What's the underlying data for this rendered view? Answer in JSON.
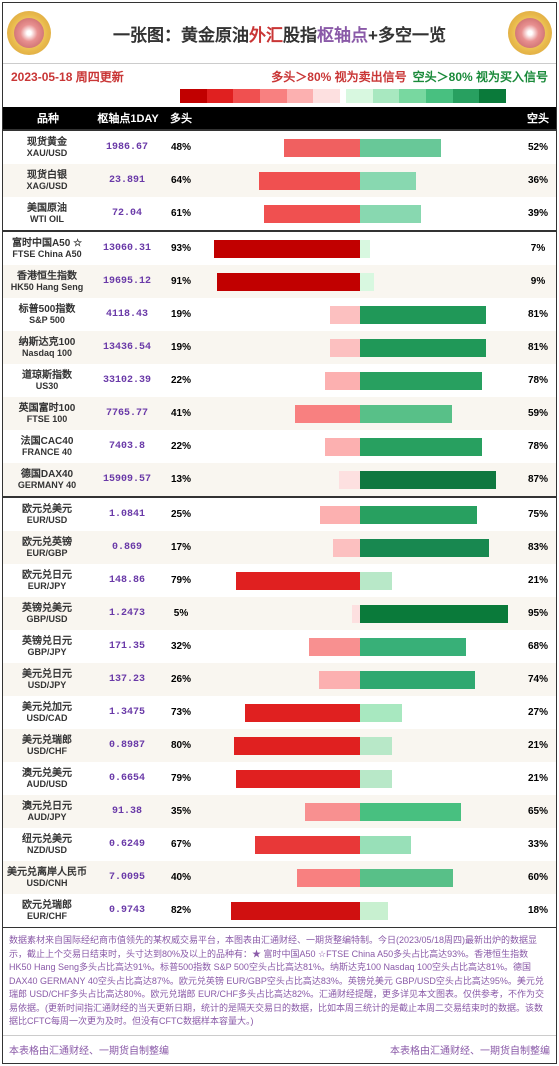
{
  "title_parts": [
    {
      "text": "一张图：黄金原油",
      "cls": "t-black"
    },
    {
      "text": "外汇",
      "cls": "t-red"
    },
    {
      "text": "股指",
      "cls": "t-black"
    },
    {
      "text": "枢轴点",
      "cls": "t-purple"
    },
    {
      "text": "+多空一览",
      "cls": "t-black"
    }
  ],
  "date": "2023-05-18 周四更新",
  "legend": {
    "sell": "多头＞80% 视为卖出信号",
    "buy": "空头＞80% 视为买入信号"
  },
  "gradient_sell": [
    "#c10000",
    "#e02020",
    "#f05050",
    "#f88080",
    "#fcb0b0",
    "#fde0e0"
  ],
  "gradient_buy": [
    "#d8f8e0",
    "#a8e8c0",
    "#78d8a0",
    "#48c080",
    "#28a060",
    "#0a7a3a"
  ],
  "columns": {
    "name": "品种",
    "pivot": "枢轴点1DAY",
    "long": "多头",
    "short": "空头"
  },
  "long_colors": {
    "5": "#fde0e0",
    "13": "#fde0e0",
    "17": "#fcc0c0",
    "19": "#fcc0c0",
    "22": "#fcb0b0",
    "25": "#fcb0b0",
    "26": "#fcb0b0",
    "32": "#f89090",
    "35": "#f89090",
    "40": "#f88080",
    "41": "#f88080",
    "48": "#f06060",
    "61": "#f05050",
    "64": "#f05050",
    "67": "#e83838",
    "73": "#e02020",
    "79": "#e02020",
    "80": "#e02020",
    "82": "#d01010",
    "91": "#c10000",
    "93": "#c10000"
  },
  "short_colors": {
    "7": "#d8f8e0",
    "9": "#d8f8e0",
    "18": "#c8f0d0",
    "21": "#b8e8c8",
    "27": "#a8e8c0",
    "33": "#98e0b8",
    "36": "#88d8b0",
    "39": "#88d8b0",
    "52": "#68c898",
    "59": "#58c088",
    "60": "#58c088",
    "65": "#48c080",
    "68": "#38b078",
    "74": "#30a870",
    "75": "#28a060",
    "78": "#28a060",
    "81": "#209858",
    "83": "#188850",
    "87": "#107840",
    "95": "#0a7a3a"
  },
  "sections": [
    [
      {
        "cn": "现货黄金",
        "en": "XAU/USD",
        "pivot": "1986.67",
        "long": 48,
        "short": 52
      },
      {
        "cn": "现货白银",
        "en": "XAG/USD",
        "pivot": "23.891",
        "long": 64,
        "short": 36
      },
      {
        "cn": "美国原油",
        "en": "WTI OIL",
        "pivot": "72.04",
        "long": 61,
        "short": 39
      }
    ],
    [
      {
        "cn": "富时中国A50 ☆",
        "en": "FTSE China A50",
        "pivot": "13060.31",
        "long": 93,
        "short": 7
      },
      {
        "cn": "香港恒生指数",
        "en": "HK50 Hang Seng",
        "pivot": "19695.12",
        "long": 91,
        "short": 9
      },
      {
        "cn": "标普500指数",
        "en": "S&P 500",
        "pivot": "4118.43",
        "long": 19,
        "short": 81
      },
      {
        "cn": "纳斯达克100",
        "en": "Nasdaq 100",
        "pivot": "13436.54",
        "long": 19,
        "short": 81
      },
      {
        "cn": "道琼斯指数",
        "en": "US30",
        "pivot": "33102.39",
        "long": 22,
        "short": 78
      },
      {
        "cn": "英国富时100",
        "en": "FTSE 100",
        "pivot": "7765.77",
        "long": 41,
        "short": 59
      },
      {
        "cn": "法国CAC40",
        "en": "FRANCE 40",
        "pivot": "7403.8",
        "long": 22,
        "short": 78
      },
      {
        "cn": "德国DAX40",
        "en": "GERMANY 40",
        "pivot": "15909.57",
        "long": 13,
        "short": 87
      }
    ],
    [
      {
        "cn": "欧元兑美元",
        "en": "EUR/USD",
        "pivot": "1.0841",
        "long": 25,
        "short": 75
      },
      {
        "cn": "欧元兑英镑",
        "en": "EUR/GBP",
        "pivot": "0.869",
        "long": 17,
        "short": 83
      },
      {
        "cn": "欧元兑日元",
        "en": "EUR/JPY",
        "pivot": "148.86",
        "long": 79,
        "short": 21
      },
      {
        "cn": "英镑兑美元",
        "en": "GBP/USD",
        "pivot": "1.2473",
        "long": 5,
        "short": 95
      },
      {
        "cn": "英镑兑日元",
        "en": "GBP/JPY",
        "pivot": "171.35",
        "long": 32,
        "short": 68
      },
      {
        "cn": "美元兑日元",
        "en": "USD/JPY",
        "pivot": "137.23",
        "long": 26,
        "short": 74
      },
      {
        "cn": "美元兑加元",
        "en": "USD/CAD",
        "pivot": "1.3475",
        "long": 73,
        "short": 27
      },
      {
        "cn": "美元兑瑞郎",
        "en": "USD/CHF",
        "pivot": "0.8987",
        "long": 80,
        "short": 21
      },
      {
        "cn": "澳元兑美元",
        "en": "AUD/USD",
        "pivot": "0.6654",
        "long": 79,
        "short": 21
      },
      {
        "cn": "澳元兑日元",
        "en": "AUD/JPY",
        "pivot": "91.38",
        "long": 35,
        "short": 65
      },
      {
        "cn": "纽元兑美元",
        "en": "NZD/USD",
        "pivot": "0.6249",
        "long": 67,
        "short": 33
      },
      {
        "cn": "美元兑离岸人民币",
        "en": "USD/CNH",
        "pivot": "7.0095",
        "long": 40,
        "short": 60
      },
      {
        "cn": "欧元兑瑞郎",
        "en": "EUR/CHF",
        "pivot": "0.9743",
        "long": 82,
        "short": 18
      }
    ]
  ],
  "footer": "数据素材来自国际经纪商市值领先的某权威交易平台，本图表由汇通财经、一期货整编特制。今日(2023/05/18周四)最新出炉的数据显示，截止上个交易日结束时，头寸达到80%及以上的品种有：★ 富时中国A50 ☆FTSE China A50多头占比高达93%。香港恒生指数 HK50 Hang Seng多头占比高达91%。标普500指数 S&P 500空头占比高达81%。纳斯达克100 Nasdaq 100空头占比高达81%。德国DAX40 GERMANY 40空头占比高达87%。欧元兑英镑 EUR/GBP空头占比高达83%。英镑兑美元 GBP/USD空头占比高达95%。美元兑瑞郎 USD/CHF多头占比高达80%。欧元兑瑞郎 EUR/CHF多头占比高达82%。汇通财经提醒，更多详见本文图表。仅供参考，不作为交易依据。(更新时间指汇通财经的当天更新日期，统计的是隔天交易日的数据，比如本周三统计的是截止本周二交易结束时的数据。该数据比CFTC每周一次更为及时。但没有CFTC数据样本容量大。)",
  "footer2": {
    "left": "本表格由汇通财经、一期货自制整编",
    "right": "本表格由汇通财经、一期货自制整编"
  }
}
